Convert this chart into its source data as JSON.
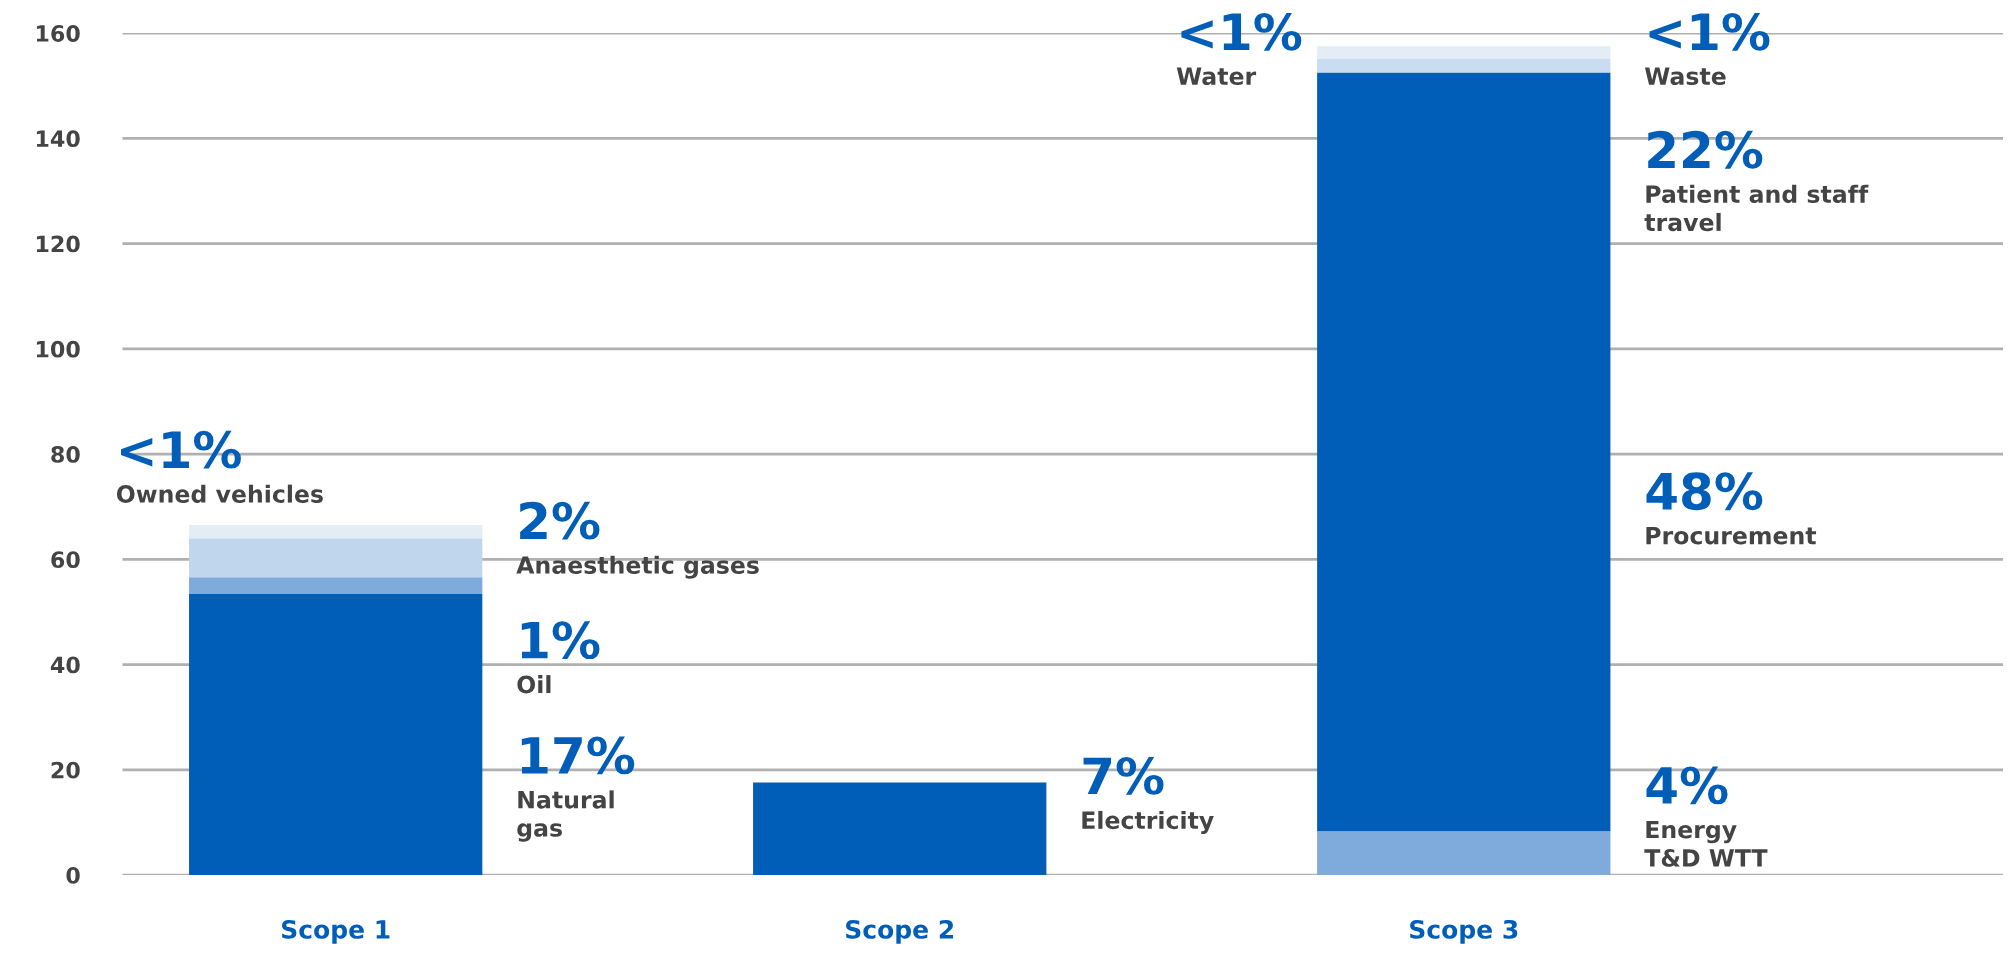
{
  "chart_data": {
    "type": "bar",
    "stacked": true,
    "categories": [
      "Scope 1",
      "Scope 2",
      "Scope 3"
    ],
    "series": [
      {
        "colors": [
          "#005eb8",
          "#005eb8",
          "#7eaadc"
        ],
        "values": [
          53.4,
          17.6,
          8.3
        ]
      },
      {
        "colors": [
          "#7eaadc",
          null,
          "#005eb8"
        ],
        "values": [
          3.2,
          null,
          144.2
        ]
      },
      {
        "colors": [
          "#c0d6ec",
          null,
          "#c9dcf1"
        ],
        "values": [
          7.4,
          null,
          2.7
        ]
      },
      {
        "colors": [
          "#e4edf6",
          null,
          "#e4edf6"
        ],
        "values": [
          2.5,
          null,
          2.3
        ]
      }
    ],
    "ylim": [
      0,
      160
    ],
    "yticks": [
      0,
      20,
      40,
      60,
      80,
      100,
      120,
      140,
      160
    ],
    "grid": "y",
    "annotations": [
      "<1%\nOwned vehicles",
      "2%\nAnaesthetic gases",
      "1%\nOil",
      "17%\nNatural\ngas",
      "7%\nElectricity",
      "<1%\nWater",
      "<1%\nWaste",
      "22%\nPatient and staff\ntravel",
      "48%\nProcurement",
      "4%\nEnergy\nT&D WTT"
    ]
  }
}
